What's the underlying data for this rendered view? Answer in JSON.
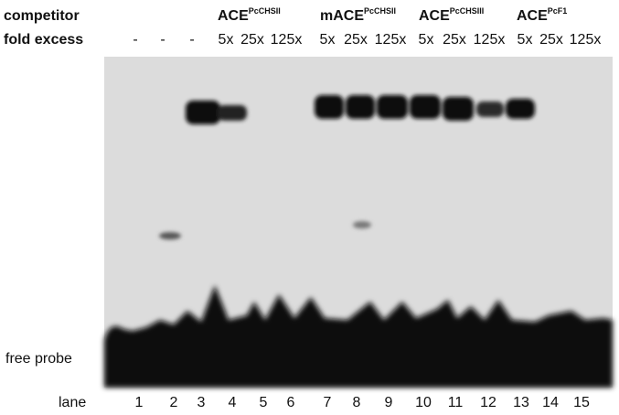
{
  "row_labels": {
    "competitor": "competitor",
    "fold_excess": "fold excess"
  },
  "no_competitor_lanes": [
    "-",
    "-",
    "-"
  ],
  "competitors": [
    {
      "name": "ACE",
      "superscript": "PcCHSII",
      "folds": [
        "5x",
        "25x",
        "125x"
      ]
    },
    {
      "name": "mACE",
      "superscript": "PcCHSII",
      "folds": [
        "5x",
        "25x",
        "125x"
      ]
    },
    {
      "name": "ACE",
      "superscript": "PcCHSIII",
      "folds": [
        "5x",
        "25x",
        "125x"
      ]
    },
    {
      "name": "ACE",
      "superscript": "PcF1",
      "folds": [
        "5x",
        "25x",
        "125x"
      ]
    }
  ],
  "free_probe_label": "free probe",
  "lane_label": "lane",
  "lanes": [
    "1",
    "2",
    "3",
    "4",
    "5",
    "6",
    "7",
    "8",
    "9",
    "10",
    "11",
    "12",
    "13",
    "14",
    "15"
  ]
}
